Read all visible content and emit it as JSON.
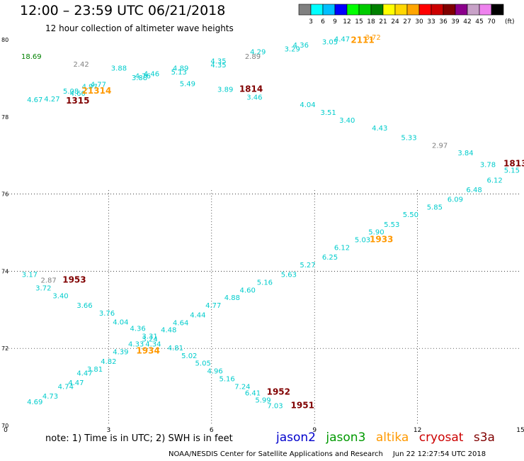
{
  "header": {
    "title": "12:00  –  23:59 UTC 06/21/2018",
    "subtitle": "12 hour collection of altimeter wave heights"
  },
  "colorbar": {
    "unit": "(ft)",
    "bins": [
      {
        "label": "3",
        "color": "#808080"
      },
      {
        "label": "6",
        "color": "#00ffff"
      },
      {
        "label": "9",
        "color": "#00bfff"
      },
      {
        "label": "12",
        "color": "#0000ff"
      },
      {
        "label": "15",
        "color": "#00ff00"
      },
      {
        "label": "18",
        "color": "#00cc00"
      },
      {
        "label": "21",
        "color": "#008000"
      },
      {
        "label": "24",
        "color": "#ffff00"
      },
      {
        "label": "27",
        "color": "#ffd700"
      },
      {
        "label": "30",
        "color": "#ffa500"
      },
      {
        "label": "33",
        "color": "#ff0000"
      },
      {
        "label": "36",
        "color": "#cc0000"
      },
      {
        "label": "39",
        "color": "#800000"
      },
      {
        "label": "42",
        "color": "#8b008b"
      },
      {
        "label": "45",
        "color": "#c8a2c8"
      },
      {
        "label": "70",
        "color": "#ee82ee"
      },
      {
        "label": "",
        "color": "#000000"
      }
    ]
  },
  "footer": {
    "note": "note:  1) Time is in UTC;  2) SWH is in feet",
    "satellites": [
      {
        "name": "jason2",
        "color": "#0000cc"
      },
      {
        "name": "jason3",
        "color": "#009900"
      },
      {
        "name": "altika",
        "color": "#ff9900"
      },
      {
        "name": "cryosat",
        "color": "#cc0000"
      },
      {
        "name": "s3a",
        "color": "#800000"
      }
    ],
    "credit_left": "NOAA/NESDIS Center for Satellite Applications and Research",
    "credit_right": "Jun 22 12:27:54 UTC 2018"
  },
  "chart_data": {
    "type": "scatter",
    "xlim": [
      0,
      15
    ],
    "ylim": [
      70,
      80
    ],
    "x_ticks": [
      "0",
      "3",
      "6",
      "9",
      "12",
      "15"
    ],
    "y_ticks": [
      "70",
      "72",
      "74",
      "76",
      "78",
      "80"
    ],
    "grid": true,
    "points": [
      {
        "x": 0.75,
        "y": 79.5,
        "label": "18.69",
        "color": "#008000"
      },
      {
        "x": 2.2,
        "y": 79.3,
        "label": "2.42",
        "color": "#808080"
      },
      {
        "x": 3.3,
        "y": 79.2,
        "label": "3.88",
        "color": "#00cccc"
      },
      {
        "x": 4.0,
        "y": 79.0,
        "label": "4.76",
        "color": "#00cccc"
      },
      {
        "x": 4.25,
        "y": 79.05,
        "label": "4.46",
        "color": "#00cccc"
      },
      {
        "x": 3.9,
        "y": 78.95,
        "label": "3.88",
        "color": "#00cccc"
      },
      {
        "x": 5.1,
        "y": 79.2,
        "label": "4.89",
        "color": "#00cccc"
      },
      {
        "x": 5.05,
        "y": 79.1,
        "label": "5.13",
        "color": "#00cccc"
      },
      {
        "x": 5.3,
        "y": 78.8,
        "label": "5.49",
        "color": "#00cccc"
      },
      {
        "x": 2.7,
        "y": 78.78,
        "label": "4.77",
        "color": "#00cccc"
      },
      {
        "x": 2.45,
        "y": 78.72,
        "label": "4.97",
        "color": "#00cccc"
      },
      {
        "x": 1.9,
        "y": 78.6,
        "label": "5.08",
        "color": "#00cccc"
      },
      {
        "x": 2.1,
        "y": 78.55,
        "label": "4.60",
        "color": "#00cccc"
      },
      {
        "x": 2.65,
        "y": 78.6,
        "label": "21314",
        "color": "#ff9900"
      },
      {
        "x": 1.35,
        "y": 78.4,
        "label": "4.27",
        "color": "#00cccc"
      },
      {
        "x": 0.85,
        "y": 78.38,
        "label": "4.67",
        "color": "#00cccc"
      },
      {
        "x": 2.1,
        "y": 78.35,
        "label": "1315",
        "color": "#800000"
      },
      {
        "x": 6.2,
        "y": 79.38,
        "label": "4.35",
        "color": "#00cccc"
      },
      {
        "x": 6.2,
        "y": 79.28,
        "label": "4.35",
        "color": "#00cccc"
      },
      {
        "x": 6.4,
        "y": 78.65,
        "label": "3.89",
        "color": "#00cccc"
      },
      {
        "x": 7.35,
        "y": 79.62,
        "label": "4.29",
        "color": "#00cccc"
      },
      {
        "x": 7.2,
        "y": 79.5,
        "label": "2.89",
        "color": "#808080"
      },
      {
        "x": 7.15,
        "y": 78.65,
        "label": "1814",
        "color": "#800000"
      },
      {
        "x": 7.25,
        "y": 78.45,
        "label": "3.46",
        "color": "#00cccc"
      },
      {
        "x": 8.35,
        "y": 79.7,
        "label": "3.29",
        "color": "#00cccc"
      },
      {
        "x": 8.6,
        "y": 79.8,
        "label": "4.36",
        "color": "#00cccc"
      },
      {
        "x": 9.45,
        "y": 79.88,
        "label": "3.05",
        "color": "#00cccc"
      },
      {
        "x": 9.8,
        "y": 79.95,
        "label": "4.47",
        "color": "#00cccc"
      },
      {
        "x": 10.7,
        "y": 80.0,
        "label": "3.72",
        "color": "#ff9900"
      },
      {
        "x": 10.4,
        "y": 79.92,
        "label": "2111",
        "color": "#ff9900"
      },
      {
        "x": 8.8,
        "y": 78.25,
        "label": "4.04",
        "color": "#00cccc"
      },
      {
        "x": 9.4,
        "y": 78.05,
        "label": "3.51",
        "color": "#00cccc"
      },
      {
        "x": 9.95,
        "y": 77.85,
        "label": "3.40",
        "color": "#00cccc"
      },
      {
        "x": 10.9,
        "y": 77.65,
        "label": "4.43",
        "color": "#00cccc"
      },
      {
        "x": 11.75,
        "y": 77.4,
        "label": "5.33",
        "color": "#00cccc"
      },
      {
        "x": 12.65,
        "y": 77.2,
        "label": "2.97",
        "color": "#808080"
      },
      {
        "x": 13.4,
        "y": 77.0,
        "label": "3.84",
        "color": "#00cccc"
      },
      {
        "x": 14.05,
        "y": 76.7,
        "label": "3.78",
        "color": "#00cccc"
      },
      {
        "x": 14.85,
        "y": 76.72,
        "label": "1813",
        "color": "#800000"
      },
      {
        "x": 0.7,
        "y": 73.85,
        "label": "3.17",
        "color": "#00cccc"
      },
      {
        "x": 1.25,
        "y": 73.7,
        "label": "2.87",
        "color": "#808080"
      },
      {
        "x": 2.0,
        "y": 73.7,
        "label": "1953",
        "color": "#800000"
      },
      {
        "x": 1.1,
        "y": 73.5,
        "label": "3.72",
        "color": "#00cccc"
      },
      {
        "x": 1.6,
        "y": 73.3,
        "label": "3.40",
        "color": "#00cccc"
      },
      {
        "x": 2.3,
        "y": 73.05,
        "label": "3.66",
        "color": "#00cccc"
      },
      {
        "x": 2.95,
        "y": 72.85,
        "label": "3.76",
        "color": "#00cccc"
      },
      {
        "x": 3.35,
        "y": 72.62,
        "label": "4.04",
        "color": "#00cccc"
      },
      {
        "x": 3.85,
        "y": 72.45,
        "label": "4.36",
        "color": "#00cccc"
      },
      {
        "x": 4.2,
        "y": 72.25,
        "label": "3.31",
        "color": "#00cccc"
      },
      {
        "x": 4.2,
        "y": 72.18,
        "label": "3.24",
        "color": "#00cccc"
      },
      {
        "x": 4.75,
        "y": 72.42,
        "label": "4.48",
        "color": "#00cccc"
      },
      {
        "x": 5.1,
        "y": 72.6,
        "label": "4.64",
        "color": "#00cccc"
      },
      {
        "x": 5.6,
        "y": 72.8,
        "label": "4.44",
        "color": "#00cccc"
      },
      {
        "x": 6.05,
        "y": 73.05,
        "label": "4.77",
        "color": "#00cccc"
      },
      {
        "x": 6.6,
        "y": 73.25,
        "label": "4.88",
        "color": "#00cccc"
      },
      {
        "x": 7.05,
        "y": 73.45,
        "label": "4.60",
        "color": "#00cccc"
      },
      {
        "x": 7.55,
        "y": 73.65,
        "label": "5.16",
        "color": "#00cccc"
      },
      {
        "x": 8.25,
        "y": 73.85,
        "label": "5.63",
        "color": "#00cccc"
      },
      {
        "x": 8.8,
        "y": 74.1,
        "label": "5.27",
        "color": "#00cccc"
      },
      {
        "x": 9.45,
        "y": 74.3,
        "label": "6.25",
        "color": "#00cccc"
      },
      {
        "x": 9.8,
        "y": 74.55,
        "label": "6.12",
        "color": "#00cccc"
      },
      {
        "x": 10.4,
        "y": 74.75,
        "label": "5.03",
        "color": "#00cccc"
      },
      {
        "x": 10.8,
        "y": 74.95,
        "label": "5.90",
        "color": "#00cccc"
      },
      {
        "x": 10.95,
        "y": 74.75,
        "label": "1933",
        "color": "#ff9900"
      },
      {
        "x": 11.25,
        "y": 75.15,
        "label": "5.53",
        "color": "#00cccc"
      },
      {
        "x": 11.8,
        "y": 75.4,
        "label": "5.50",
        "color": "#00cccc"
      },
      {
        "x": 12.5,
        "y": 75.6,
        "label": "5.85",
        "color": "#00cccc"
      },
      {
        "x": 13.1,
        "y": 75.8,
        "label": "6.09",
        "color": "#00cccc"
      },
      {
        "x": 13.65,
        "y": 76.05,
        "label": "6.48",
        "color": "#00cccc"
      },
      {
        "x": 14.25,
        "y": 76.3,
        "label": "6.12",
        "color": "#00cccc"
      },
      {
        "x": 14.75,
        "y": 76.55,
        "label": "5.15",
        "color": "#00cccc"
      },
      {
        "x": 0.85,
        "y": 70.55,
        "label": "4.69",
        "color": "#00cccc"
      },
      {
        "x": 1.3,
        "y": 70.7,
        "label": "4.73",
        "color": "#00cccc"
      },
      {
        "x": 1.75,
        "y": 70.95,
        "label": "4.74",
        "color": "#00cccc"
      },
      {
        "x": 2.05,
        "y": 71.05,
        "label": "4.47",
        "color": "#00cccc"
      },
      {
        "x": 2.3,
        "y": 71.3,
        "label": "4.47",
        "color": "#00cccc"
      },
      {
        "x": 2.6,
        "y": 71.4,
        "label": "3.81",
        "color": "#00cccc"
      },
      {
        "x": 3.0,
        "y": 71.6,
        "label": "4.82",
        "color": "#00cccc"
      },
      {
        "x": 3.35,
        "y": 71.85,
        "label": "4.39",
        "color": "#00cccc"
      },
      {
        "x": 3.8,
        "y": 72.05,
        "label": "4.33",
        "color": "#00cccc"
      },
      {
        "x": 4.3,
        "y": 72.05,
        "label": "4.34",
        "color": "#00cccc"
      },
      {
        "x": 4.15,
        "y": 71.87,
        "label": "1934",
        "color": "#ff9900"
      },
      {
        "x": 4.95,
        "y": 71.95,
        "label": "4.81",
        "color": "#00cccc"
      },
      {
        "x": 5.35,
        "y": 71.75,
        "label": "5.02",
        "color": "#00cccc"
      },
      {
        "x": 5.75,
        "y": 71.55,
        "label": "5.05",
        "color": "#00cccc"
      },
      {
        "x": 6.1,
        "y": 71.35,
        "label": "4.96",
        "color": "#00cccc"
      },
      {
        "x": 6.45,
        "y": 71.15,
        "label": "5.16",
        "color": "#00cccc"
      },
      {
        "x": 6.9,
        "y": 70.95,
        "label": "7.24",
        "color": "#00cccc"
      },
      {
        "x": 7.2,
        "y": 70.78,
        "label": "6.41",
        "color": "#00cccc"
      },
      {
        "x": 7.5,
        "y": 70.6,
        "label": "5.99",
        "color": "#00cccc"
      },
      {
        "x": 7.85,
        "y": 70.45,
        "label": "7.03",
        "color": "#00cccc"
      },
      {
        "x": 7.95,
        "y": 70.8,
        "label": "1952",
        "color": "#800000"
      },
      {
        "x": 8.65,
        "y": 70.45,
        "label": "1951",
        "color": "#800000"
      }
    ]
  }
}
